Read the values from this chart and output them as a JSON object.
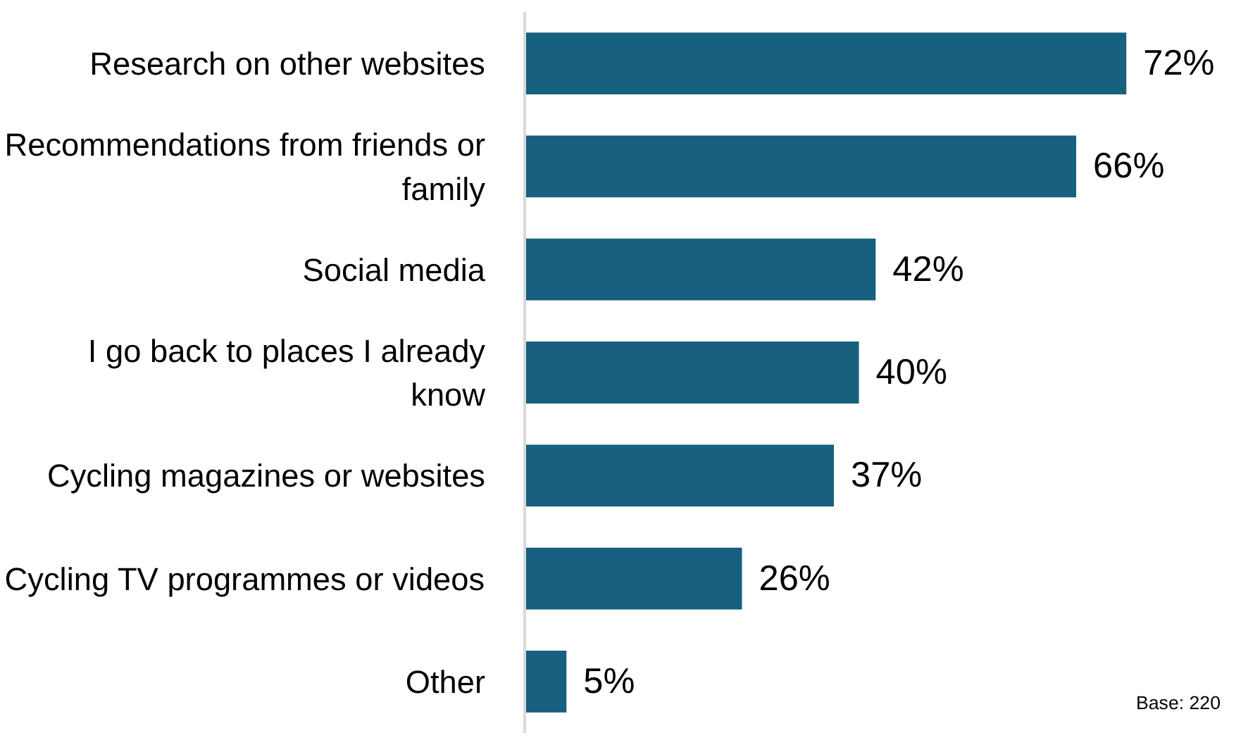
{
  "chart_data": {
    "type": "bar",
    "orientation": "horizontal",
    "categories": [
      "Research on other websites",
      "Recommendations from friends or family",
      "Social media",
      "I go back to places I already know",
      "Cycling magazines or websites",
      "Cycling TV programmes or videos",
      "Other"
    ],
    "values": [
      72,
      66,
      42,
      40,
      37,
      26,
      5
    ],
    "color": "#17607f",
    "data_labels": true,
    "value_labels": [
      "72%",
      "66%",
      "42%",
      "40%",
      "37%",
      "26%",
      "5%"
    ],
    "annotations": [
      "Base: 220"
    ],
    "grid": false
  }
}
